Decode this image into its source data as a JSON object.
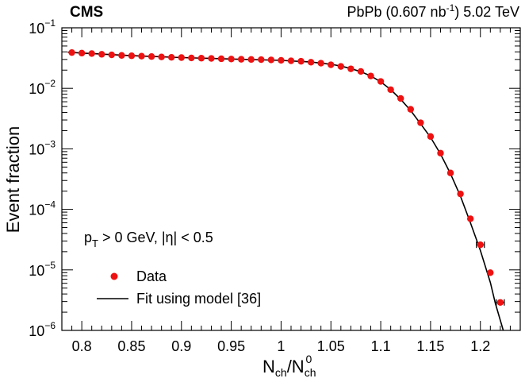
{
  "header": {
    "experiment": "CMS",
    "dataset_prefix": "PbPb (0.607 nb",
    "dataset_exp": "-1",
    "dataset_suffix": ") 5.02 TeV"
  },
  "axes": {
    "ylabel": "Event fraction",
    "xlabel_main": "N",
    "xlabel_sub1": "ch",
    "xlabel_slash": "/N",
    "xlabel_sub2": "ch",
    "xlabel_sup2": "0"
  },
  "annotation": {
    "p": "p",
    "p_sub": "T",
    "rest": " > 0 GeV, |η| < 0.5"
  },
  "legend": {
    "data_label": "Data",
    "fit_label": "Fit using model [36]"
  },
  "colors": {
    "data": "#ee1111",
    "fit": "#000000"
  },
  "chart_data": {
    "type": "scatter",
    "xlim": [
      0.78,
      1.24
    ],
    "ylim": [
      1e-06,
      0.1
    ],
    "yscale": "log",
    "xticks": [
      {
        "v": 0.8,
        "label": "0.8"
      },
      {
        "v": 0.85,
        "label": "0.85"
      },
      {
        "v": 0.9,
        "label": "0.9"
      },
      {
        "v": 0.95,
        "label": "0.95"
      },
      {
        "v": 1.0,
        "label": "1"
      },
      {
        "v": 1.05,
        "label": "1.05"
      },
      {
        "v": 1.1,
        "label": "1.1"
      },
      {
        "v": 1.15,
        "label": "1.15"
      },
      {
        "v": 1.2,
        "label": "1.2"
      }
    ],
    "yticks": [
      {
        "exp": -6,
        "base": "10",
        "sup": "−6"
      },
      {
        "exp": -5,
        "base": "10",
        "sup": "−5"
      },
      {
        "exp": -4,
        "base": "10",
        "sup": "−4"
      },
      {
        "exp": -3,
        "base": "10",
        "sup": "−3"
      },
      {
        "exp": -2,
        "base": "10",
        "sup": "−2"
      },
      {
        "exp": -1,
        "base": "10",
        "sup": "−1"
      }
    ],
    "series": [
      {
        "name": "Data",
        "x": [
          0.79,
          0.8,
          0.81,
          0.82,
          0.83,
          0.84,
          0.85,
          0.86,
          0.87,
          0.88,
          0.89,
          0.9,
          0.91,
          0.92,
          0.93,
          0.94,
          0.95,
          0.96,
          0.97,
          0.98,
          0.99,
          1.0,
          1.01,
          1.02,
          1.03,
          1.04,
          1.05,
          1.06,
          1.07,
          1.08,
          1.09,
          1.1,
          1.11,
          1.12,
          1.13,
          1.14,
          1.15,
          1.16,
          1.17,
          1.18,
          1.19,
          1.2,
          1.21,
          1.22
        ],
        "y": [
          0.039,
          0.0382,
          0.0375,
          0.0365,
          0.0357,
          0.035,
          0.0345,
          0.034,
          0.0335,
          0.033,
          0.0325,
          0.0322,
          0.0318,
          0.0315,
          0.0312,
          0.0308,
          0.0305,
          0.0302,
          0.03,
          0.0298,
          0.0295,
          0.029,
          0.0285,
          0.028,
          0.027,
          0.026,
          0.0245,
          0.023,
          0.021,
          0.019,
          0.016,
          0.013,
          0.0095,
          0.0068,
          0.0045,
          0.0027,
          0.0016,
          0.00085,
          0.0004,
          0.00018,
          7e-05,
          2.6e-05,
          9e-06,
          2.9e-06
        ],
        "xerr": [
          0,
          0,
          0,
          0,
          0,
          0,
          0,
          0,
          0,
          0,
          0,
          0,
          0,
          0,
          0,
          0,
          0,
          0,
          0,
          0,
          0,
          0,
          0,
          0,
          0,
          0,
          0,
          0,
          0,
          0,
          0,
          0,
          0,
          0,
          0,
          0,
          0,
          0,
          0,
          0,
          0,
          0.004,
          0,
          0.004
        ]
      },
      {
        "name": "Fit using model [36]",
        "type": "line",
        "x": [
          0.786,
          0.8,
          0.85,
          0.9,
          0.95,
          1.0,
          1.03,
          1.05,
          1.06,
          1.07,
          1.08,
          1.09,
          1.1,
          1.11,
          1.12,
          1.13,
          1.14,
          1.15,
          1.16,
          1.17,
          1.18,
          1.19,
          1.2,
          1.21,
          1.215,
          1.223
        ],
        "y": [
          0.0395,
          0.0382,
          0.0346,
          0.0322,
          0.0305,
          0.029,
          0.0272,
          0.025,
          0.0233,
          0.0212,
          0.0188,
          0.016,
          0.0128,
          0.0095,
          0.0066,
          0.0043,
          0.0026,
          0.00155,
          0.00082,
          0.00039,
          0.000165,
          6e-05,
          2.1e-05,
          6.2e-06,
          2.8e-06,
          1e-06
        ]
      }
    ]
  }
}
